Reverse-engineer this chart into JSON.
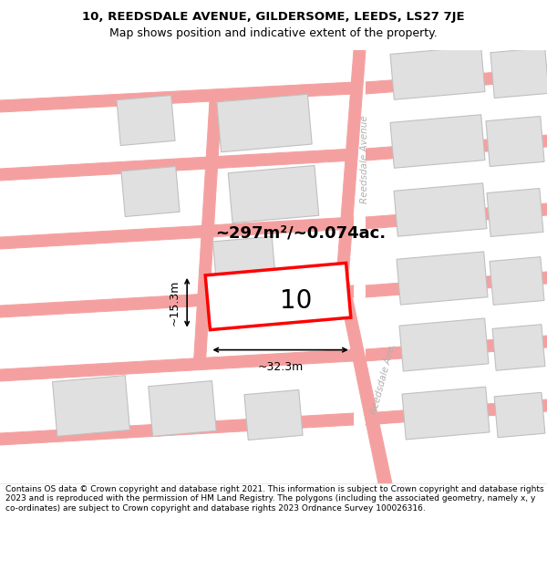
{
  "title_line1": "10, REEDSDALE AVENUE, GILDERSOME, LEEDS, LS27 7JE",
  "title_line2": "Map shows position and indicative extent of the property.",
  "footer_text": "Contains OS data © Crown copyright and database right 2021. This information is subject to Crown copyright and database rights 2023 and is reproduced with the permission of HM Land Registry. The polygons (including the associated geometry, namely x, y co-ordinates) are subject to Crown copyright and database rights 2023 Ordnance Survey 100026316.",
  "area_text": "~297m²/~0.074ac.",
  "property_number": "10",
  "dim_width": "~32.3m",
  "dim_height": "~15.3m",
  "map_bg": "#ffffff",
  "road_line_color": "#f5a0a0",
  "road_label_color": "#b0b0b0",
  "building_fill": "#e0e0e0",
  "building_edge": "#c0c0c0",
  "highlight_fill": "#ffffff",
  "highlight_edge": "#ff0000",
  "dim_line_color": "#000000",
  "title_color": "#000000",
  "footer_color": "#000000",
  "text_color": "#000000"
}
